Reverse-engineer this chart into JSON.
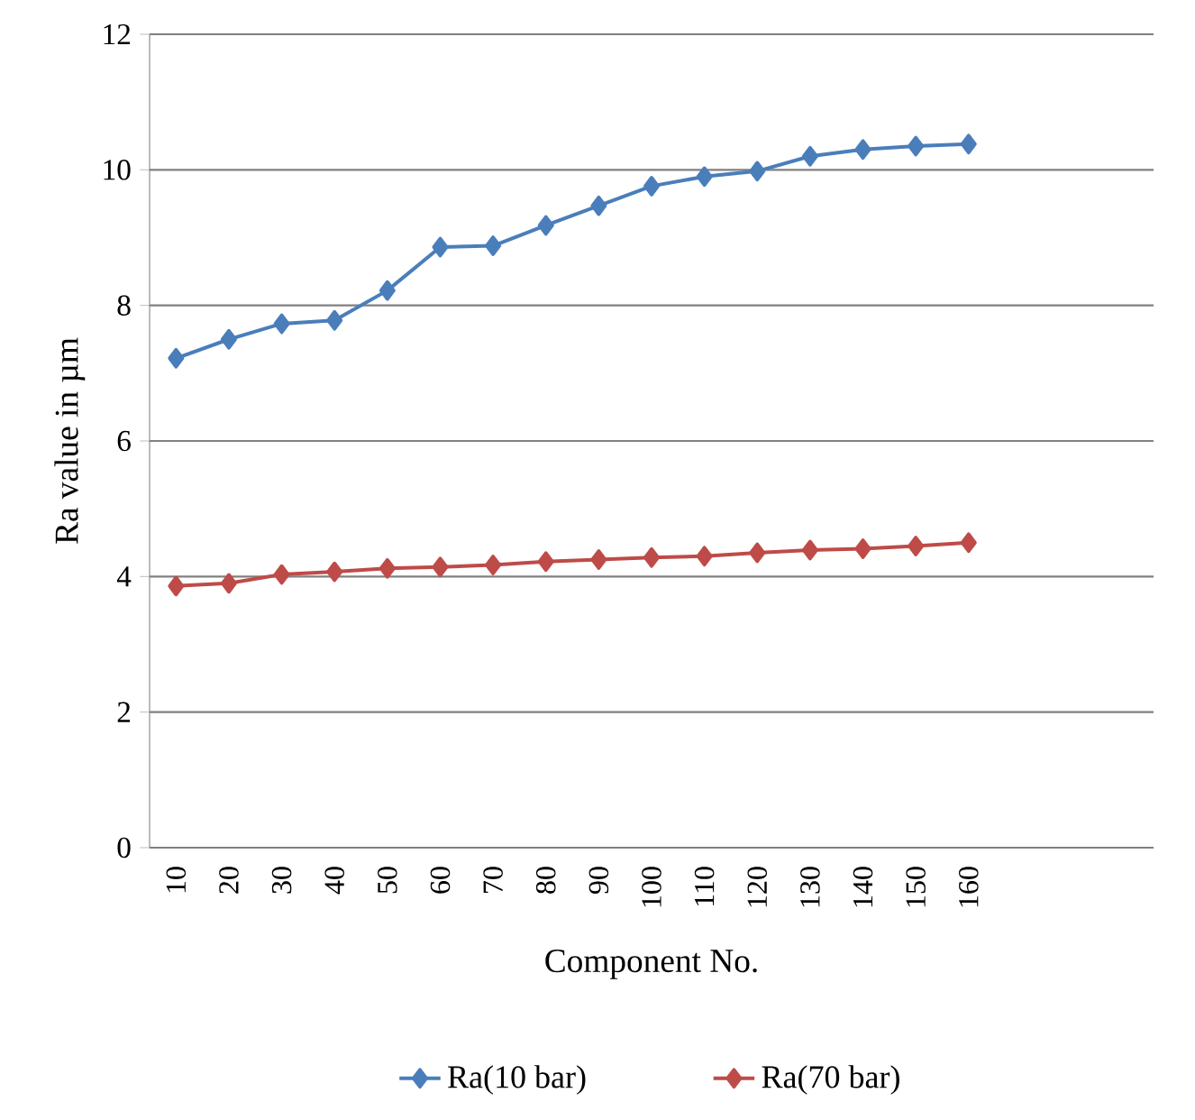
{
  "chart_data": {
    "type": "line",
    "xlabel": "Component No.",
    "ylabel": "Ra value in µm",
    "categories": [
      "10",
      "20",
      "30",
      "40",
      "50",
      "60",
      "70",
      "80",
      "90",
      "100",
      "110",
      "120",
      "130",
      "140",
      "150",
      "160",
      null,
      null,
      null
    ],
    "series": [
      {
        "name": "Ra(10 bar)",
        "color": "#4a7ebb",
        "values": [
          7.22,
          7.5,
          7.73,
          7.78,
          8.22,
          8.86,
          8.88,
          9.18,
          9.47,
          9.76,
          9.9,
          9.98,
          10.2,
          10.3,
          10.35,
          10.38,
          null,
          null,
          null
        ]
      },
      {
        "name": "Ra(70 bar)",
        "color": "#be4b48",
        "values": [
          3.86,
          3.9,
          4.03,
          4.07,
          4.12,
          4.14,
          4.17,
          4.22,
          4.25,
          4.28,
          4.3,
          4.35,
          4.39,
          4.41,
          4.45,
          4.5,
          null,
          null,
          null
        ]
      }
    ],
    "ylim": [
      0,
      12
    ],
    "yticks": [
      0,
      2,
      4,
      6,
      8,
      10,
      12
    ],
    "grid": "y",
    "legend": "bottom",
    "marker": "diamond",
    "line_style": "solid"
  }
}
